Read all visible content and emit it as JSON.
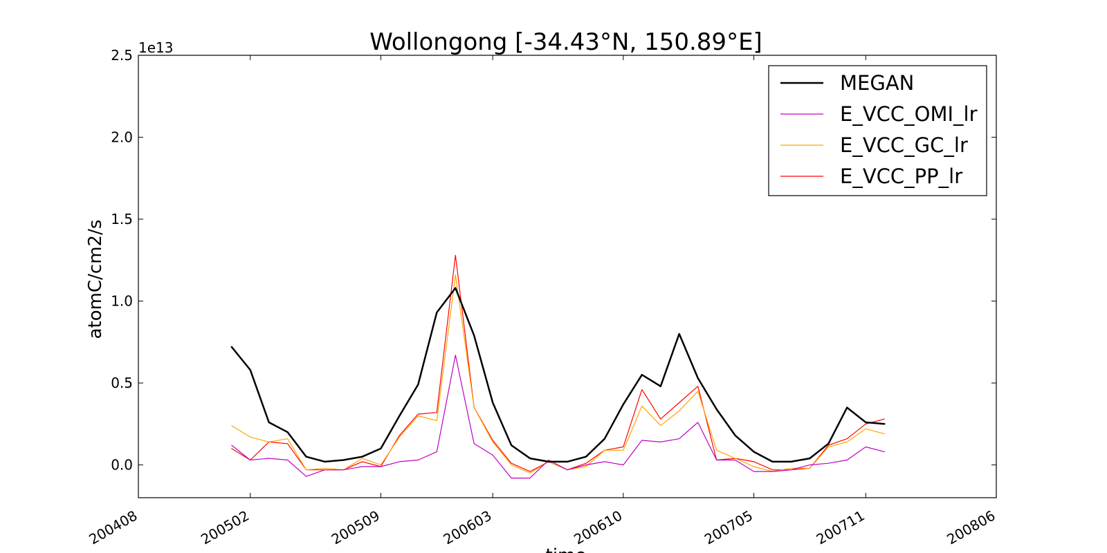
{
  "chart_data": {
    "type": "line",
    "title": "Wollongong [-34.43°N, 150.89°E]",
    "xlabel": "time",
    "ylabel": "atomC/cm2/s",
    "y_multiplier_label": "1e13",
    "xlim": [
      "2004-08",
      "2008-06"
    ],
    "ylim": [
      -0.2,
      2.5
    ],
    "y_unit_scale": 10000000000000.0,
    "x_ticks": [
      "2004-08",
      "2005-02",
      "2005-09",
      "2006-03",
      "2006-10",
      "2007-05",
      "2007-11",
      "2008-06"
    ],
    "x_tick_labels": [
      "200408",
      "200502",
      "200509",
      "200603",
      "200610",
      "200705",
      "200711",
      "200806"
    ],
    "y_ticks": [
      0.0,
      0.5,
      1.0,
      1.5,
      2.0,
      2.5
    ],
    "y_tick_labels": [
      "0.0",
      "0.5",
      "1.0",
      "1.5",
      "2.0",
      "2.5"
    ],
    "grid": false,
    "legend_position": "top-right",
    "x": [
      "2005-01",
      "2005-02",
      "2005-03",
      "2005-04",
      "2005-05",
      "2005-06",
      "2005-07",
      "2005-08",
      "2005-09",
      "2005-10",
      "2005-11",
      "2005-12",
      "2006-01",
      "2006-02",
      "2006-03",
      "2006-04",
      "2006-05",
      "2006-06",
      "2006-07",
      "2006-08",
      "2006-09",
      "2006-10",
      "2006-11",
      "2006-12",
      "2007-01",
      "2007-02",
      "2007-03",
      "2007-04",
      "2007-05",
      "2007-06",
      "2007-07",
      "2007-08",
      "2007-09",
      "2007-10",
      "2007-11",
      "2007-12"
    ],
    "series": [
      {
        "name": "MEGAN",
        "color": "#000000",
        "width": 2.5,
        "values": [
          0.72,
          0.58,
          0.26,
          0.2,
          0.05,
          0.02,
          0.03,
          0.05,
          0.1,
          0.3,
          0.49,
          0.93,
          1.08,
          0.79,
          0.38,
          0.12,
          0.04,
          0.02,
          0.02,
          0.05,
          0.16,
          0.37,
          0.55,
          0.48,
          0.8,
          0.53,
          0.34,
          0.18,
          0.08,
          0.02,
          0.02,
          0.04,
          0.13,
          0.35,
          0.26,
          0.25
        ]
      },
      {
        "name": "E_VCC_OMI_lr",
        "color": "#c000c0",
        "width": 1.2,
        "values": [
          0.12,
          0.03,
          0.04,
          0.03,
          -0.07,
          -0.03,
          -0.03,
          -0.01,
          -0.01,
          0.02,
          0.03,
          0.08,
          0.67,
          0.13,
          0.06,
          -0.08,
          -0.08,
          0.03,
          -0.03,
          0.0,
          0.02,
          0.0,
          0.15,
          0.14,
          0.16,
          0.26,
          0.03,
          0.03,
          -0.04,
          -0.04,
          -0.03,
          0.0,
          0.01,
          0.03,
          0.11,
          0.08
        ]
      },
      {
        "name": "E_VCC_GC_lr",
        "color": "#ffa500",
        "width": 1.2,
        "values": [
          0.24,
          0.17,
          0.14,
          0.16,
          -0.03,
          -0.02,
          -0.03,
          0.04,
          0.0,
          0.17,
          0.3,
          0.27,
          1.16,
          0.35,
          0.14,
          0.0,
          -0.05,
          0.02,
          -0.03,
          -0.01,
          0.09,
          0.09,
          0.36,
          0.24,
          0.33,
          0.45,
          0.09,
          0.04,
          -0.01,
          -0.04,
          -0.02,
          -0.02,
          0.11,
          0.14,
          0.22,
          0.19
        ]
      },
      {
        "name": "E_VCC_PP_lr",
        "color": "#ff0000",
        "width": 1.2,
        "values": [
          0.1,
          0.03,
          0.14,
          0.13,
          -0.03,
          -0.03,
          -0.03,
          0.02,
          -0.01,
          0.18,
          0.31,
          0.32,
          1.28,
          0.35,
          0.15,
          0.01,
          -0.04,
          0.02,
          -0.03,
          0.01,
          0.09,
          0.11,
          0.46,
          0.28,
          0.38,
          0.48,
          0.03,
          0.04,
          0.02,
          -0.03,
          -0.03,
          -0.02,
          0.12,
          0.16,
          0.25,
          0.28
        ]
      }
    ]
  }
}
